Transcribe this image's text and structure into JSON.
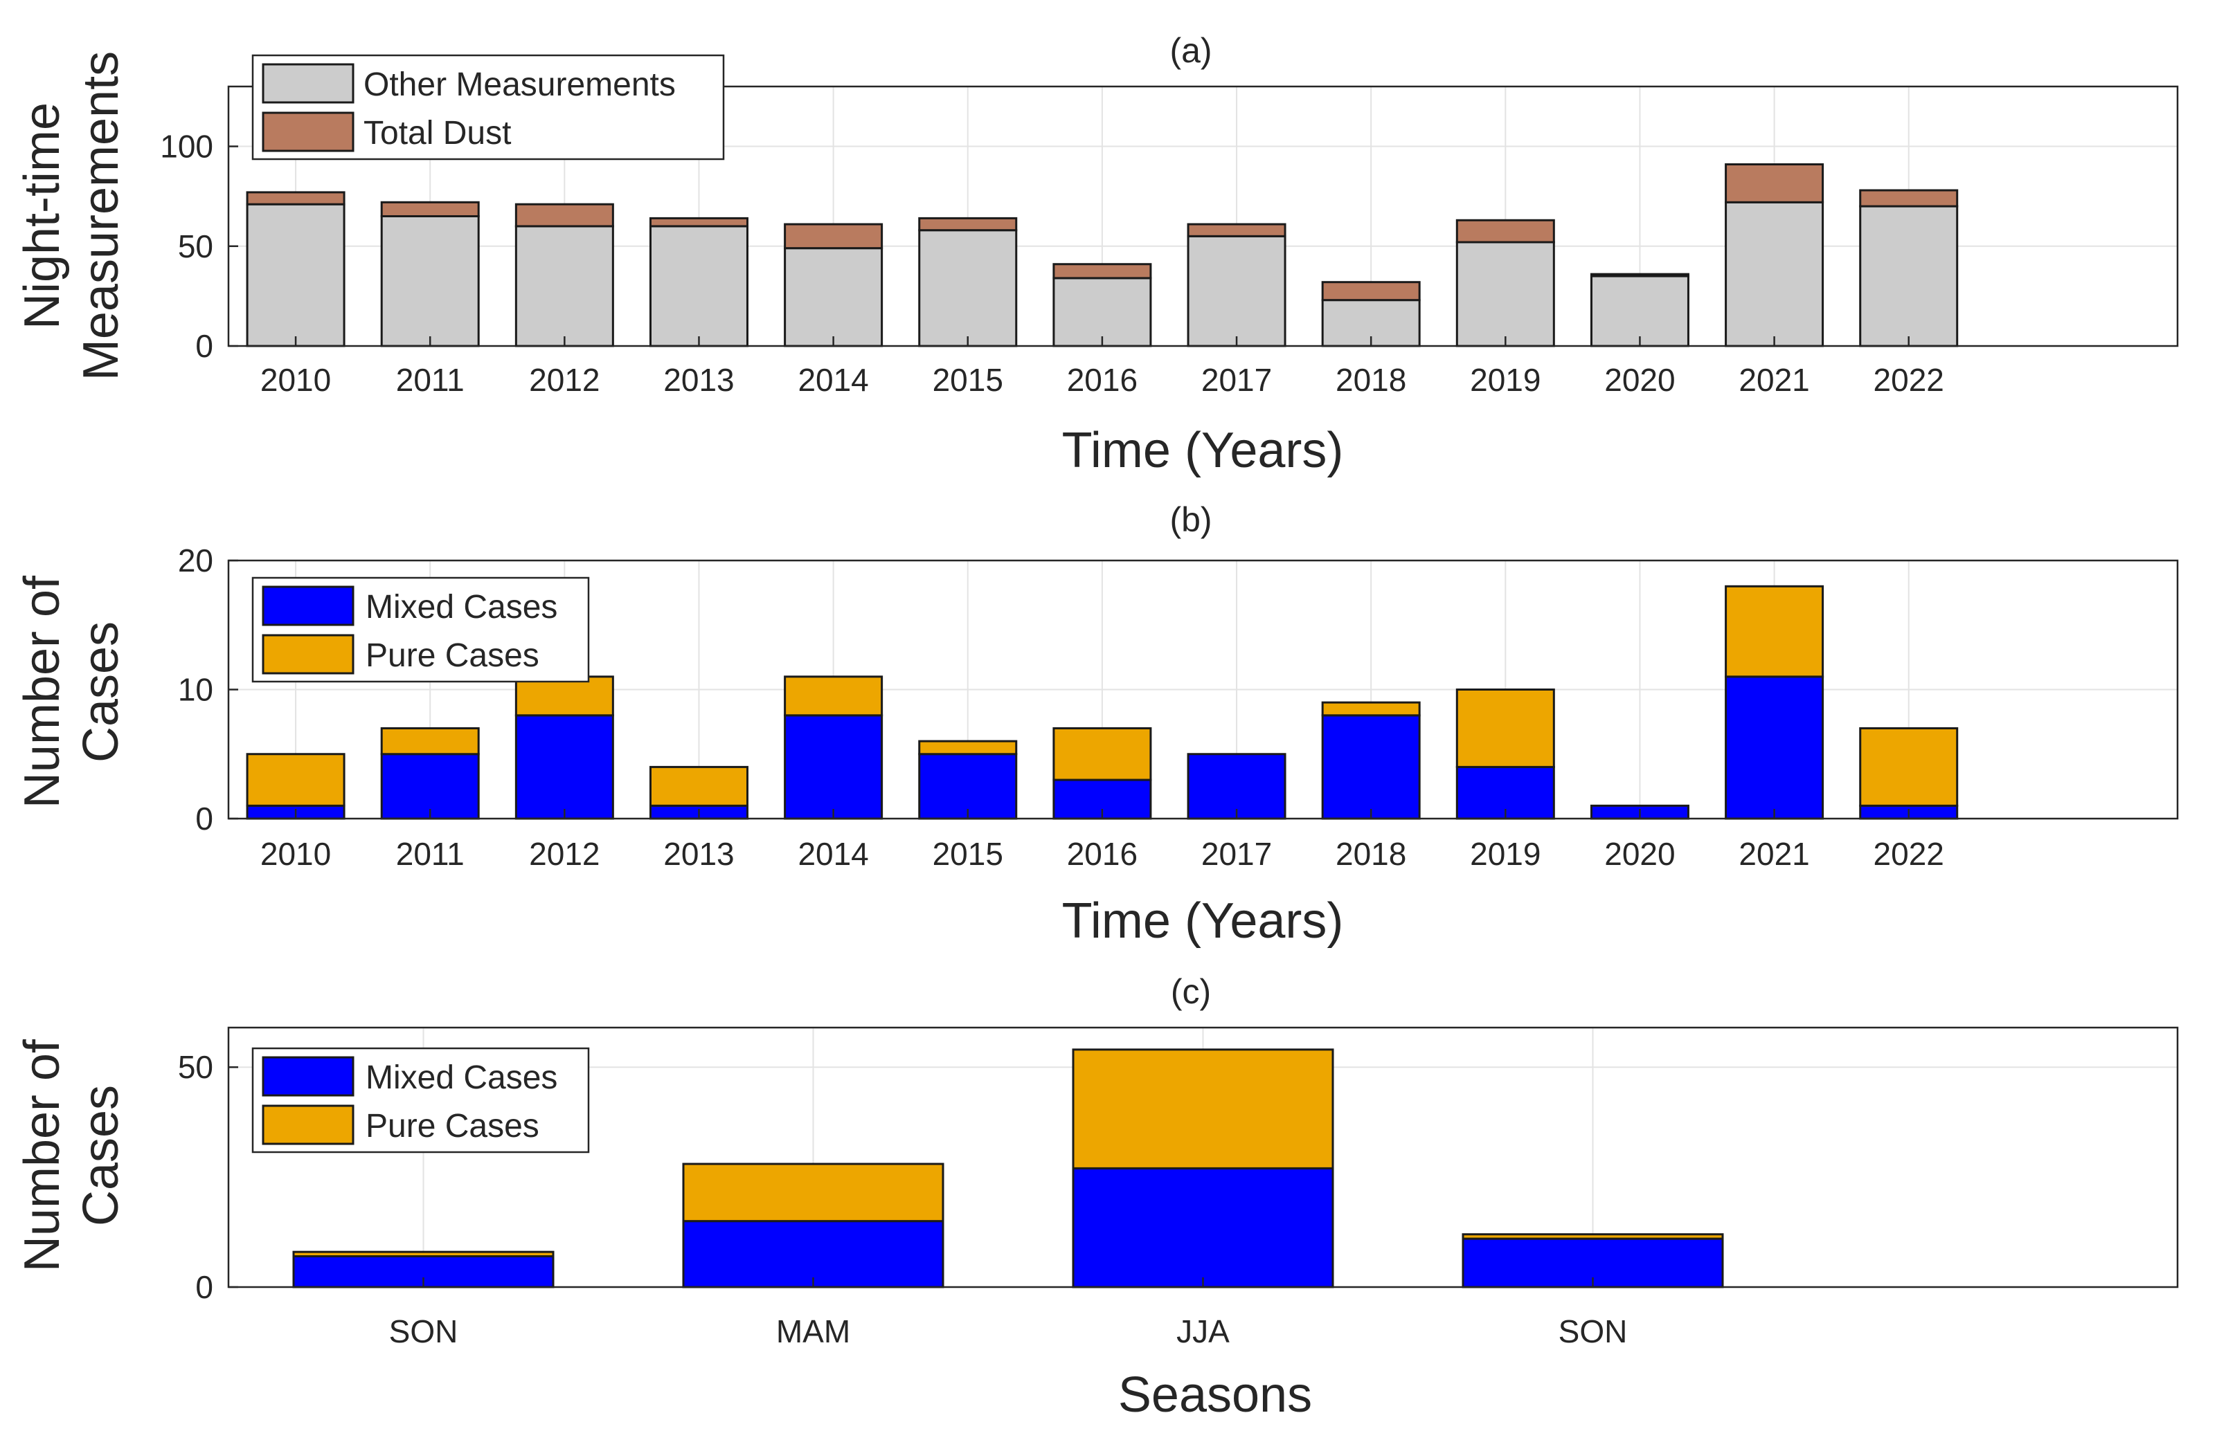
{
  "chart_data": [
    {
      "type": "bar",
      "stacked": true,
      "title": "(a)",
      "xlabel": "Time (Years)",
      "ylabel": [
        "Night-time",
        "Measurements"
      ],
      "categories": [
        "2010",
        "2011",
        "2012",
        "2013",
        "2014",
        "2015",
        "2016",
        "2017",
        "2018",
        "2019",
        "2020",
        "2021",
        "2022"
      ],
      "series": [
        {
          "name": "Other Measurements",
          "color": "#cccccc",
          "values": [
            71,
            65,
            60,
            60,
            49,
            58,
            34,
            55,
            23,
            52,
            35,
            72,
            70
          ]
        },
        {
          "name": "Total Dust",
          "color": "#b97b5f",
          "values": [
            6,
            7,
            11,
            4,
            12,
            6,
            7,
            6,
            9,
            11,
            1,
            19,
            8
          ]
        }
      ],
      "ylim": [
        0,
        130
      ],
      "yticks": [
        0,
        50,
        100
      ],
      "xlim": [
        -0.5,
        14
      ],
      "grid": true,
      "legend_position": "top-left"
    },
    {
      "type": "bar",
      "stacked": true,
      "title": "(b)",
      "xlabel": "Time (Years)",
      "ylabel": [
        "Number of",
        "Cases"
      ],
      "categories": [
        "2010",
        "2011",
        "2012",
        "2013",
        "2014",
        "2015",
        "2016",
        "2017",
        "2018",
        "2019",
        "2020",
        "2021",
        "2022"
      ],
      "series": [
        {
          "name": "Mixed Cases",
          "color": "#0000ff",
          "values": [
            1,
            5,
            8,
            1,
            8,
            5,
            3,
            5,
            8,
            4,
            1,
            11,
            1
          ]
        },
        {
          "name": "Pure Cases",
          "color": "#eda600",
          "values": [
            4,
            2,
            3,
            3,
            3,
            1,
            4,
            0,
            1,
            6,
            0,
            7,
            6
          ]
        }
      ],
      "ylim": [
        0,
        20
      ],
      "yticks": [
        0,
        10,
        20
      ],
      "xlim": [
        -0.5,
        14
      ],
      "grid": true,
      "legend_position": "top-left"
    },
    {
      "type": "bar",
      "stacked": true,
      "title": "(c)",
      "xlabel": "Seasons",
      "ylabel": [
        "Number of",
        "Cases"
      ],
      "categories": [
        "SON",
        "MAM",
        "JJA",
        "SON"
      ],
      "series": [
        {
          "name": "Mixed Cases",
          "color": "#0000ff",
          "values": [
            7,
            15,
            27,
            11
          ]
        },
        {
          "name": "Pure Cases",
          "color": "#eda600",
          "values": [
            1,
            13,
            27,
            1
          ]
        }
      ],
      "ylim": [
        0,
        59
      ],
      "yticks": [
        0,
        50
      ],
      "xlim": [
        -0.5,
        4.5
      ],
      "grid": true,
      "legend_position": "top-left"
    }
  ]
}
